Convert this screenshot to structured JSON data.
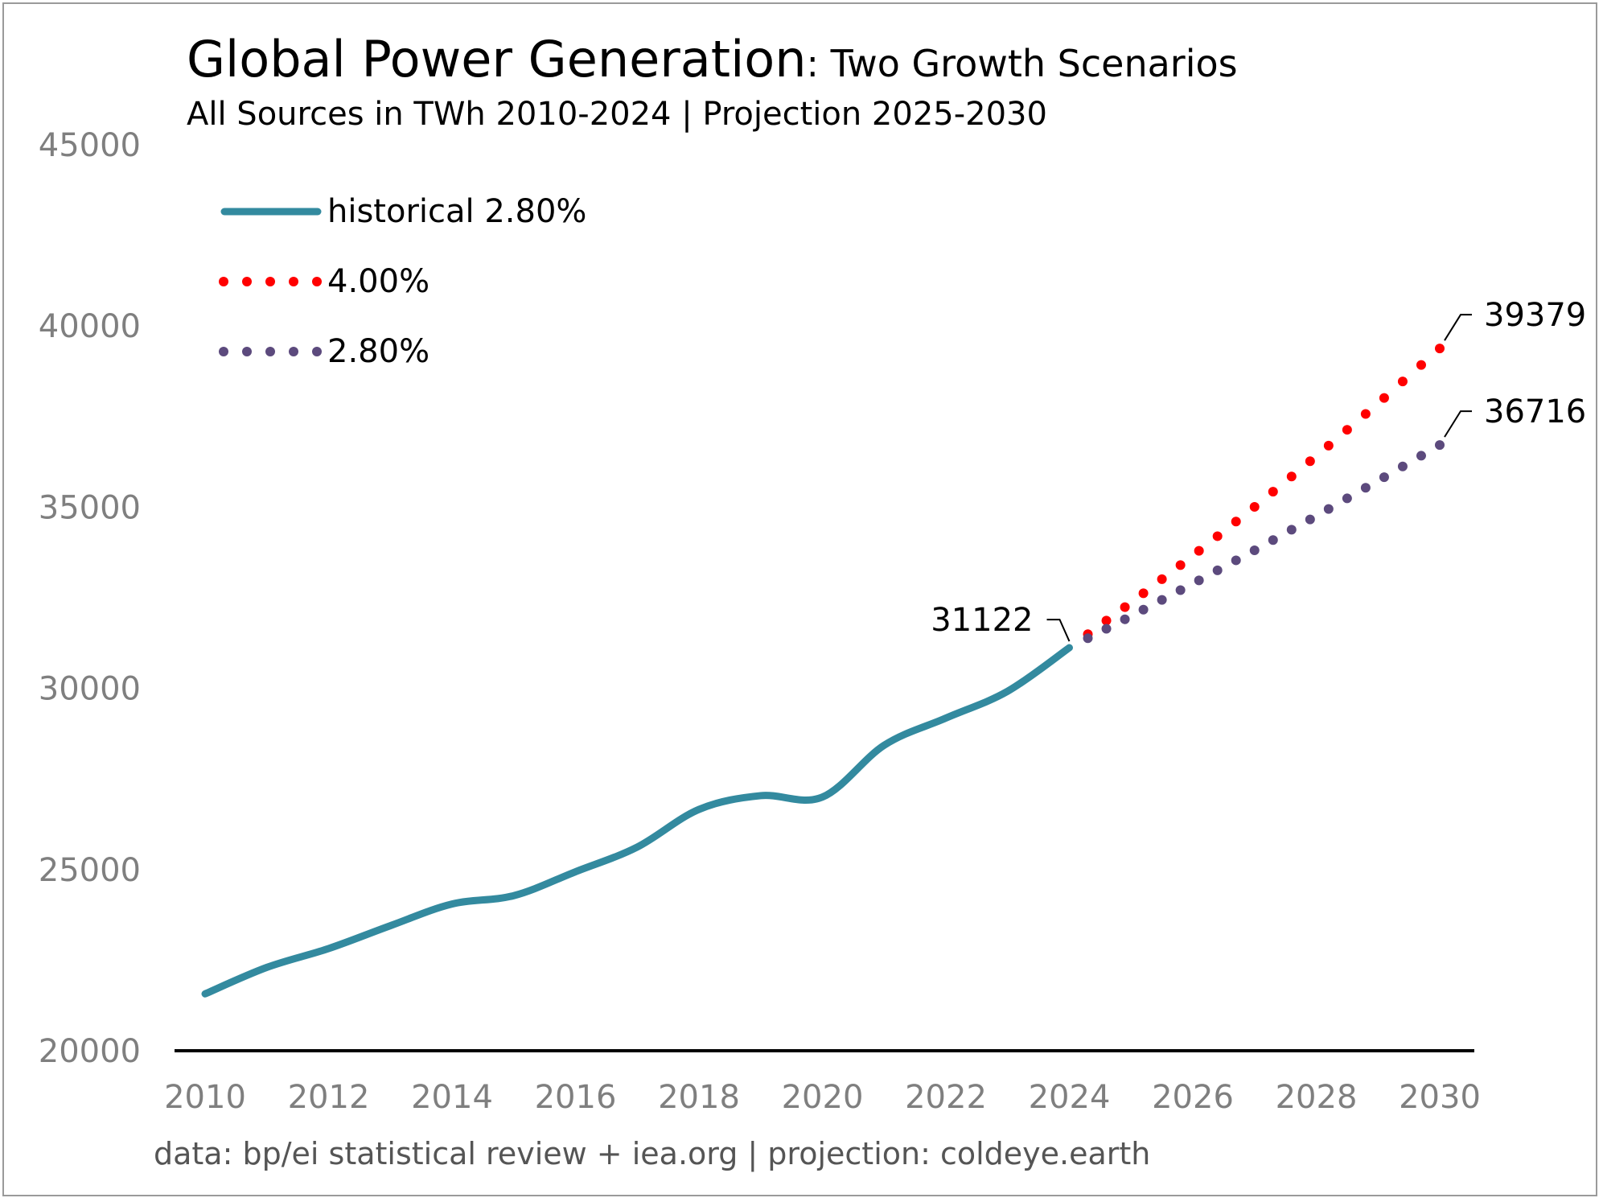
{
  "title": "Global Power Generation",
  "title_suffix": ": Two Growth Scenarios",
  "subtitle": "All Sources in TWh 2010-2024 | Projection 2025-2030",
  "source": "data: bp/ei statistical review + iea.org | projection: coldeye.earth",
  "colors": {
    "historical": "#338a9f",
    "scenario_high": "#ff0000",
    "scenario_base": "#5c4a7d",
    "axis": "#000000",
    "tick_text": "#7f7f7f"
  },
  "chart_data": {
    "type": "line",
    "title": "Global Power Generation: Two Growth Scenarios",
    "subtitle": "All Sources in TWh 2010-2024 | Projection 2025-2030",
    "xlabel": "",
    "ylabel": "",
    "xlim": [
      2010,
      2030
    ],
    "ylim": [
      20000,
      45000
    ],
    "xticks": [
      "2010",
      "2012",
      "2014",
      "2016",
      "2018",
      "2020",
      "2022",
      "2024",
      "2026",
      "2028",
      "2030"
    ],
    "yticks": [
      "20000",
      "25000",
      "30000",
      "35000",
      "40000",
      "45000"
    ],
    "grid": false,
    "legend_position": "top-left",
    "series": [
      {
        "name": "historical 2.80%",
        "style": "solid",
        "x": [
          2010,
          2011,
          2012,
          2013,
          2014,
          2015,
          2016,
          2017,
          2018,
          2019,
          2020,
          2021,
          2022,
          2023,
          2024
        ],
        "y": [
          21570,
          22300,
          22820,
          23450,
          24050,
          24280,
          24940,
          25620,
          26660,
          27040,
          27000,
          28430,
          29180,
          29920,
          31122
        ]
      },
      {
        "name": "4.00%",
        "style": "dotted",
        "x": [
          2024,
          2025,
          2026,
          2027,
          2028,
          2029,
          2030
        ],
        "y": [
          31122,
          32367,
          33661,
          35008,
          36408,
          37864,
          39379
        ]
      },
      {
        "name": "2.80%",
        "style": "dotted",
        "x": [
          2024,
          2025,
          2026,
          2027,
          2028,
          2029,
          2030
        ],
        "y": [
          31122,
          31993,
          32889,
          33810,
          34757,
          35730,
          36716
        ]
      }
    ],
    "annotations": [
      {
        "text": "31122",
        "x": 2024,
        "y": 31122
      },
      {
        "text": "39379",
        "x": 2030,
        "y": 39379
      },
      {
        "text": "36716",
        "x": 2030,
        "y": 36716
      }
    ]
  }
}
